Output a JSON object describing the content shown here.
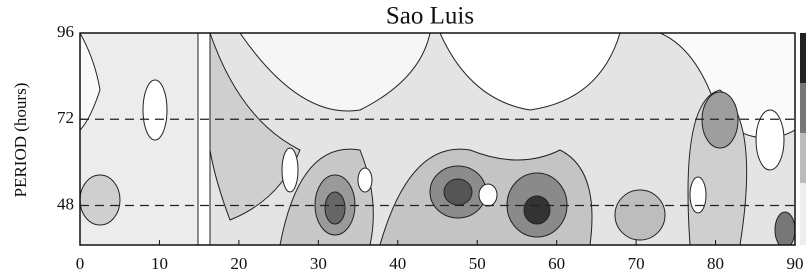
{
  "chart_data": {
    "type": "contour",
    "title": "Sao Luis",
    "y_label": "PERIOD (hours)",
    "xlim": [
      0,
      90
    ],
    "xticks": [
      0,
      10,
      20,
      30,
      40,
      50,
      60,
      70,
      80,
      90
    ],
    "ylim": [
      37,
      96
    ],
    "yticks": [
      48,
      72,
      96
    ],
    "hlines": [
      48,
      72
    ]
  }
}
